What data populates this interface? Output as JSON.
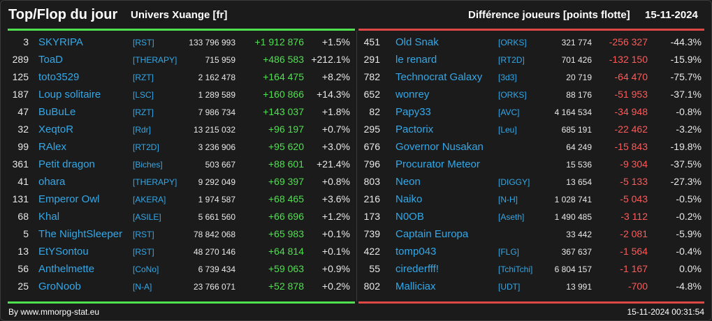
{
  "header": {
    "title": "Top/Flop du jour",
    "universe": "Univers Xuange [fr]",
    "metric": "Différence joueurs [points flotte]",
    "date": "15-11-2024"
  },
  "top": [
    {
      "rank": "3",
      "name": "SKYRIPA",
      "guild": "[RST]",
      "points": "133 796 993",
      "diff": "+1 912 876",
      "pct": "+1.5%"
    },
    {
      "rank": "289",
      "name": "ToaD",
      "guild": "[THERAPY]",
      "points": "715 959",
      "diff": "+486 583",
      "pct": "+212.1%"
    },
    {
      "rank": "125",
      "name": "toto3529",
      "guild": "[RZT]",
      "points": "2 162 478",
      "diff": "+164 475",
      "pct": "+8.2%"
    },
    {
      "rank": "187",
      "name": "Loup solitaire",
      "guild": "[LSC]",
      "points": "1 289 589",
      "diff": "+160 866",
      "pct": "+14.3%"
    },
    {
      "rank": "47",
      "name": "BuBuLe",
      "guild": "[RZT]",
      "points": "7 986 734",
      "diff": "+143 037",
      "pct": "+1.8%"
    },
    {
      "rank": "32",
      "name": "XeqtoR",
      "guild": "[Rdr]",
      "points": "13 215 032",
      "diff": "+96 197",
      "pct": "+0.7%"
    },
    {
      "rank": "99",
      "name": "RAlex",
      "guild": "[RT2D]",
      "points": "3 236 906",
      "diff": "+95 620",
      "pct": "+3.0%"
    },
    {
      "rank": "361",
      "name": "Petit dragon",
      "guild": "[Biches]",
      "points": "503 667",
      "diff": "+88 601",
      "pct": "+21.4%"
    },
    {
      "rank": "41",
      "name": "ohara",
      "guild": "[THERAPY]",
      "points": "9 292 049",
      "diff": "+69 397",
      "pct": "+0.8%"
    },
    {
      "rank": "131",
      "name": "Emperor Owl",
      "guild": "[AKERA]",
      "points": "1 974 587",
      "diff": "+68 465",
      "pct": "+3.6%"
    },
    {
      "rank": "68",
      "name": "Khal",
      "guild": "[ASILE]",
      "points": "5 661 560",
      "diff": "+66 696",
      "pct": "+1.2%"
    },
    {
      "rank": "5",
      "name": "The NiightSleeper",
      "guild": "[RST]",
      "points": "78 842 068",
      "diff": "+65 983",
      "pct": "+0.1%"
    },
    {
      "rank": "13",
      "name": "EtYSontou",
      "guild": "[RST]",
      "points": "48 270 146",
      "diff": "+64 814",
      "pct": "+0.1%"
    },
    {
      "rank": "56",
      "name": "Anthelmette",
      "guild": "[CoNo]",
      "points": "6 739 434",
      "diff": "+59 063",
      "pct": "+0.9%"
    },
    {
      "rank": "25",
      "name": "GroNoob",
      "guild": "[N-A]",
      "points": "23 766 071",
      "diff": "+52 878",
      "pct": "+0.2%"
    }
  ],
  "flop": [
    {
      "rank": "451",
      "name": "Old Snak",
      "guild": "[ORKS]",
      "points": "321 774",
      "diff": "-256 327",
      "pct": "-44.3%"
    },
    {
      "rank": "291",
      "name": "le renard",
      "guild": "[RT2D]",
      "points": "701 426",
      "diff": "-132 150",
      "pct": "-15.9%"
    },
    {
      "rank": "782",
      "name": "Technocrat Galaxy",
      "guild": "[3d3]",
      "points": "20 719",
      "diff": "-64 470",
      "pct": "-75.7%"
    },
    {
      "rank": "652",
      "name": "wonrey",
      "guild": "[ORKS]",
      "points": "88 176",
      "diff": "-51 953",
      "pct": "-37.1%"
    },
    {
      "rank": "82",
      "name": "Papy33",
      "guild": "[AVC]",
      "points": "4 164 534",
      "diff": "-34 948",
      "pct": "-0.8%"
    },
    {
      "rank": "295",
      "name": "Pactorix",
      "guild": "[Leu]",
      "points": "685 191",
      "diff": "-22 462",
      "pct": "-3.2%"
    },
    {
      "rank": "676",
      "name": "Governor Nusakan",
      "guild": "",
      "points": "64 249",
      "diff": "-15 843",
      "pct": "-19.8%"
    },
    {
      "rank": "796",
      "name": "Procurator Meteor",
      "guild": "",
      "points": "15 536",
      "diff": "-9 304",
      "pct": "-37.5%"
    },
    {
      "rank": "803",
      "name": "Neon",
      "guild": "[DIGGY]",
      "points": "13 654",
      "diff": "-5 133",
      "pct": "-27.3%"
    },
    {
      "rank": "216",
      "name": "Naiko",
      "guild": "[N-H]",
      "points": "1 028 741",
      "diff": "-5 043",
      "pct": "-0.5%"
    },
    {
      "rank": "173",
      "name": "N0OB",
      "guild": "[Aseth]",
      "points": "1 490 485",
      "diff": "-3 112",
      "pct": "-0.2%"
    },
    {
      "rank": "739",
      "name": "Captain Europa",
      "guild": "",
      "points": "33 442",
      "diff": "-2 081",
      "pct": "-5.9%"
    },
    {
      "rank": "422",
      "name": "tomp043",
      "guild": "[FLG]",
      "points": "367 637",
      "diff": "-1 564",
      "pct": "-0.4%"
    },
    {
      "rank": "55",
      "name": "cirederfff!",
      "guild": "[TchiTchi]",
      "points": "6 804 157",
      "diff": "-1 167",
      "pct": "0.0%"
    },
    {
      "rank": "802",
      "name": "Malliciax",
      "guild": "[UDT]",
      "points": "13 991",
      "diff": "-700",
      "pct": "-4.8%"
    }
  ],
  "footer": {
    "credit": "By www.mmorpg-stat.eu",
    "timestamp": "15-11-2024 00:31:54"
  },
  "colors": {
    "gain": "#4fe04f",
    "loss": "#ff5a5a",
    "link": "#33a8e8",
    "background": "#1b1b1b"
  }
}
